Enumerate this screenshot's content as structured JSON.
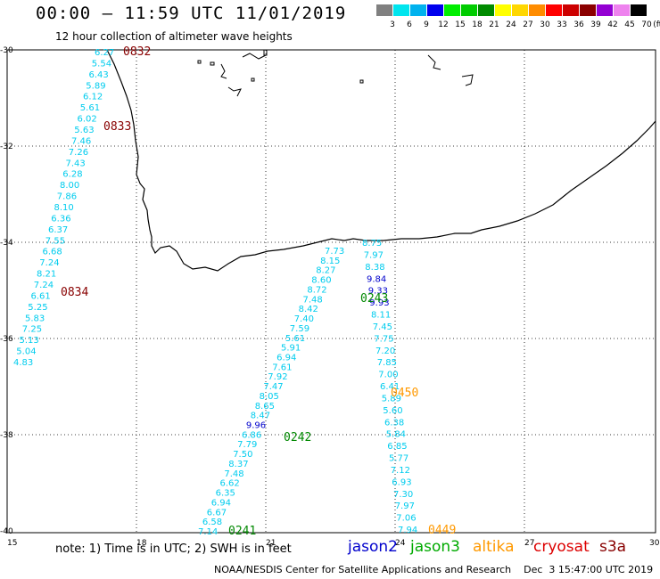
{
  "title": "00:00 – 11:59 UTC 11/01/2019",
  "subtitle": "12 hour collection of altimeter wave heights",
  "scale": {
    "unit": "(ft)",
    "bins": [
      {
        "label": "3",
        "color": "#808080"
      },
      {
        "label": "6",
        "color": "#00e5ee"
      },
      {
        "label": "9",
        "color": "#00b2ee"
      },
      {
        "label": "12",
        "color": "#0000ee"
      },
      {
        "label": "15",
        "color": "#00ee00"
      },
      {
        "label": "18",
        "color": "#00cc00"
      },
      {
        "label": "21",
        "color": "#008b00"
      },
      {
        "label": "24",
        "color": "#ffff00"
      },
      {
        "label": "27",
        "color": "#ffd700"
      },
      {
        "label": "30",
        "color": "#ff8c00"
      },
      {
        "label": "33",
        "color": "#ff0000"
      },
      {
        "label": "36",
        "color": "#cd0000"
      },
      {
        "label": "39",
        "color": "#8b0000"
      },
      {
        "label": "42",
        "color": "#9400d3"
      },
      {
        "label": "45",
        "color": "#ee82ee"
      },
      {
        "label": "70",
        "color": "#000000"
      }
    ]
  },
  "axes": {
    "lon_ticks": [
      "15",
      "18",
      "21",
      "24",
      "27",
      "30"
    ],
    "lat_ticks": [
      "-30",
      "-32",
      "-34",
      "-36",
      "-38",
      "-40"
    ]
  },
  "colors": {
    "cyan": "#00ccee",
    "blue": "#0000cc",
    "green": "#008800",
    "orange": "#ff9900",
    "darkred": "#880000",
    "red": "#cc0000"
  },
  "tracks": [
    {
      "name": "track-west",
      "values": [
        "6.27",
        "5.54",
        "6.43",
        "5.89",
        "6.12",
        "5.61",
        "6.02",
        "5.63",
        "7.46",
        "7.26",
        "7.43",
        "6.28",
        "8.00",
        "7.86",
        "8.10",
        "6.36",
        "6.37",
        "7.55",
        "6.68",
        "7.24",
        "8.21",
        "7.24",
        "6.61",
        "5.25",
        "5.83",
        "7.25",
        "5.13",
        "5.04",
        "4.83"
      ]
    },
    {
      "name": "track-mid",
      "values": [
        "7.73",
        "8.15",
        "8.27",
        "8.60",
        "8.72",
        "7.48",
        "8.42",
        "7.40",
        "7.59",
        "5.61",
        "5.91",
        "6.94",
        "7.61",
        "7.92",
        "7.47",
        "8.05",
        "8.65",
        "8.47",
        "9.96",
        "6.86",
        "7.79",
        "7.50",
        "8.37",
        "7.48",
        "6.62",
        "6.35",
        "6.94",
        "6.67",
        "6.58",
        "7.14"
      ]
    },
    {
      "name": "track-east",
      "values": [
        "8.75",
        "7.97",
        "8.38",
        "9.84",
        "9.33",
        "9.93",
        "8.11",
        "7.45",
        "7.75",
        "7.20",
        "7.85",
        "7.00",
        "6.41",
        "5.89",
        "5.60",
        "6.38",
        "5.84",
        "6.85",
        "5.77",
        "7.12",
        "6.93",
        "7.30",
        "7.97",
        "7.06",
        "7.94"
      ]
    }
  ],
  "times": [
    {
      "label": "0832",
      "color": "darkred"
    },
    {
      "label": "0833",
      "color": "darkred"
    },
    {
      "label": "0834",
      "color": "darkred"
    },
    {
      "label": "0243",
      "color": "green"
    },
    {
      "label": "0242",
      "color": "green"
    },
    {
      "label": "0241",
      "color": "green"
    },
    {
      "label": "0450",
      "color": "orange"
    },
    {
      "label": "0449",
      "color": "orange"
    }
  ],
  "note": "note: 1) Time is in UTC; 2) SWH is in feet",
  "satellites": [
    {
      "label": "jason2",
      "color": "#0000cc"
    },
    {
      "label": "jason3",
      "color": "#00aa00"
    },
    {
      "label": "altika",
      "color": "#ff9900"
    },
    {
      "label": "cryosat",
      "color": "#dd0000"
    },
    {
      "label": "s3a",
      "color": "#880000"
    }
  ],
  "footer": "NOAA/NESDIS Center for Satellite Applications and Research    Dec  3 15:47:00 UTC 2019"
}
